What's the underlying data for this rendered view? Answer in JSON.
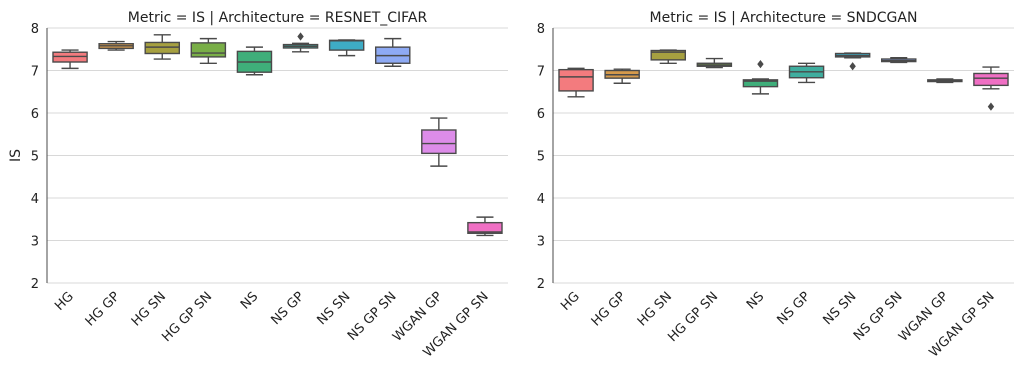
{
  "chart_data": [
    {
      "type": "box",
      "title": "Metric = IS | Architecture = RESNET_CIFAR",
      "ylabel": "IS",
      "xlabel": "",
      "ylim": [
        2,
        8
      ],
      "yticks": [
        "2",
        "3",
        "4",
        "5",
        "6",
        "7",
        "8"
      ],
      "grid": "horizontal",
      "categories": [
        "HG",
        "HG GP",
        "HG SN",
        "HG GP SN",
        "NS",
        "NS GP",
        "NS SN",
        "NS GP SN",
        "WGAN GP",
        "WGAN GP SN"
      ],
      "boxes": [
        {
          "min": 7.05,
          "q1": 7.2,
          "median": 7.33,
          "q3": 7.43,
          "max": 7.48,
          "outliers": []
        },
        {
          "min": 7.48,
          "q1": 7.52,
          "median": 7.58,
          "q3": 7.63,
          "max": 7.68,
          "outliers": []
        },
        {
          "min": 7.27,
          "q1": 7.4,
          "median": 7.55,
          "q3": 7.66,
          "max": 7.84,
          "outliers": []
        },
        {
          "min": 7.17,
          "q1": 7.32,
          "median": 7.41,
          "q3": 7.65,
          "max": 7.75,
          "outliers": []
        },
        {
          "min": 6.9,
          "q1": 6.96,
          "median": 7.2,
          "q3": 7.45,
          "max": 7.55,
          "outliers": []
        },
        {
          "min": 7.44,
          "q1": 7.53,
          "median": 7.57,
          "q3": 7.61,
          "max": 7.64,
          "outliers": [
            7.8
          ]
        },
        {
          "min": 7.35,
          "q1": 7.48,
          "median": 7.7,
          "q3": 7.71,
          "max": 7.72,
          "outliers": []
        },
        {
          "min": 7.1,
          "q1": 7.17,
          "median": 7.35,
          "q3": 7.55,
          "max": 7.75,
          "outliers": []
        },
        {
          "min": 4.75,
          "q1": 5.05,
          "median": 5.28,
          "q3": 5.6,
          "max": 5.88,
          "outliers": []
        },
        {
          "min": 3.12,
          "q1": 3.17,
          "median": 3.2,
          "q3": 3.42,
          "max": 3.55,
          "outliers": []
        }
      ]
    },
    {
      "type": "box",
      "title": "Metric = IS | Architecture = SNDCGAN",
      "ylabel": "",
      "xlabel": "",
      "ylim": [
        2,
        8
      ],
      "yticks": [
        "2",
        "3",
        "4",
        "5",
        "6",
        "7",
        "8"
      ],
      "grid": "horizontal",
      "categories": [
        "HG",
        "HG GP",
        "HG SN",
        "HG GP SN",
        "NS",
        "NS GP",
        "NS SN",
        "NS GP SN",
        "WGAN GP",
        "WGAN GP SN"
      ],
      "boxes": [
        {
          "min": 6.38,
          "q1": 6.52,
          "median": 6.85,
          "q3": 7.02,
          "max": 7.05,
          "outliers": []
        },
        {
          "min": 6.7,
          "q1": 6.82,
          "median": 6.9,
          "q3": 7.0,
          "max": 7.03,
          "outliers": []
        },
        {
          "min": 7.17,
          "q1": 7.25,
          "median": 7.43,
          "q3": 7.47,
          "max": 7.48,
          "outliers": []
        },
        {
          "min": 7.07,
          "q1": 7.1,
          "median": 7.13,
          "q3": 7.17,
          "max": 7.28,
          "outliers": []
        },
        {
          "min": 6.45,
          "q1": 6.62,
          "median": 6.75,
          "q3": 6.78,
          "max": 6.8,
          "outliers": [
            7.15
          ]
        },
        {
          "min": 6.72,
          "q1": 6.83,
          "median": 6.97,
          "q3": 7.1,
          "max": 7.17,
          "outliers": []
        },
        {
          "min": 7.3,
          "q1": 7.32,
          "median": 7.35,
          "q3": 7.4,
          "max": 7.41,
          "outliers": [
            7.1
          ]
        },
        {
          "min": 7.19,
          "q1": 7.21,
          "median": 7.23,
          "q3": 7.27,
          "max": 7.3,
          "outliers": []
        },
        {
          "min": 6.72,
          "q1": 6.74,
          "median": 6.76,
          "q3": 6.78,
          "max": 6.8,
          "outliers": []
        },
        {
          "min": 6.57,
          "q1": 6.65,
          "median": 6.82,
          "q3": 6.93,
          "max": 7.08,
          "outliers": [
            6.15
          ]
        }
      ]
    }
  ],
  "palette": [
    "#f37b7e",
    "#d59a4c",
    "#a6a040",
    "#79ae47",
    "#3fae7a",
    "#3fae9f",
    "#3eacc5",
    "#8eaaf4",
    "#dd8ce9",
    "#f06fc4"
  ],
  "box_edge_color": "#4a4a4a",
  "grid_color": "#d8d8d8"
}
